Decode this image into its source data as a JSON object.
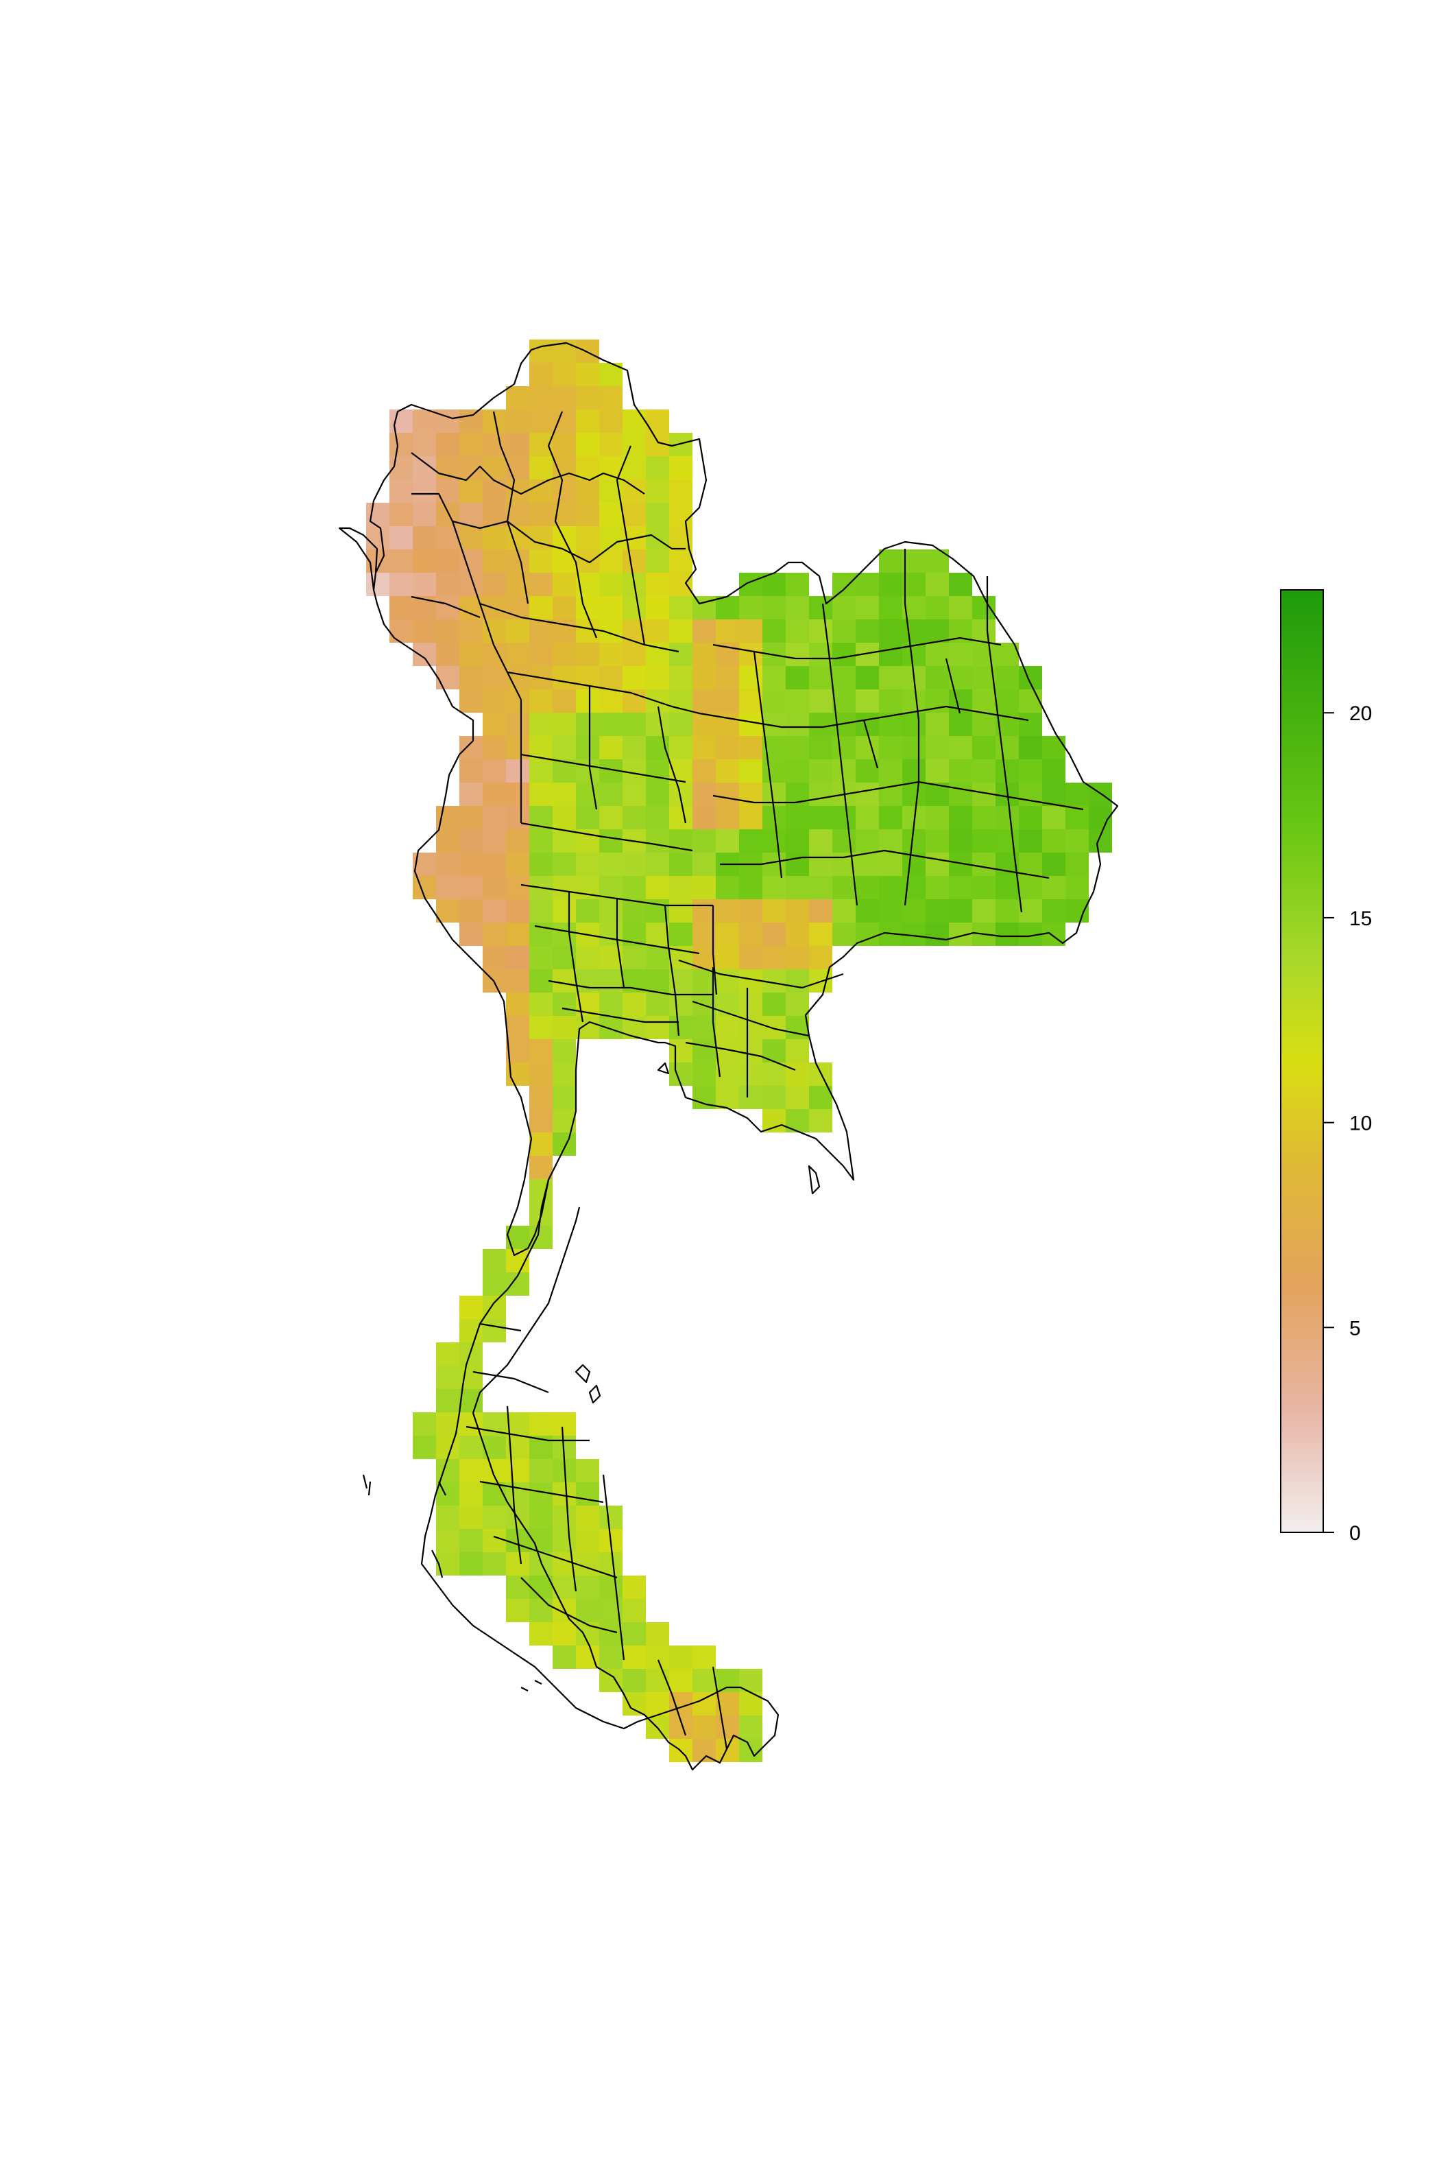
{
  "map": {
    "title": "",
    "region": "Thailand",
    "cell_data_note": "",
    "palette": {
      "0": "#f2eeee",
      "3": "#e8b5a4",
      "6": "#e3a45e",
      "9": "#dfb934",
      "11.5": "#d9de12",
      "14": "#a8d82a",
      "17": "#6cc814",
      "23": "#1e9a0a"
    },
    "boundary_color": "#000000"
  },
  "legend": {
    "type": "continuous-colorbar",
    "range": [
      0,
      23
    ],
    "ticks": [
      {
        "value": 0,
        "label": "0"
      },
      {
        "value": 5,
        "label": "5"
      },
      {
        "value": 10,
        "label": "10"
      },
      {
        "value": 15,
        "label": "15"
      },
      {
        "value": 20,
        "label": "20"
      }
    ],
    "colors": [
      "#f2eeee",
      "#e8b5a4",
      "#e3a45e",
      "#dfb934",
      "#d9de12",
      "#a8d82a",
      "#6cc814",
      "#1e9a0a"
    ]
  }
}
